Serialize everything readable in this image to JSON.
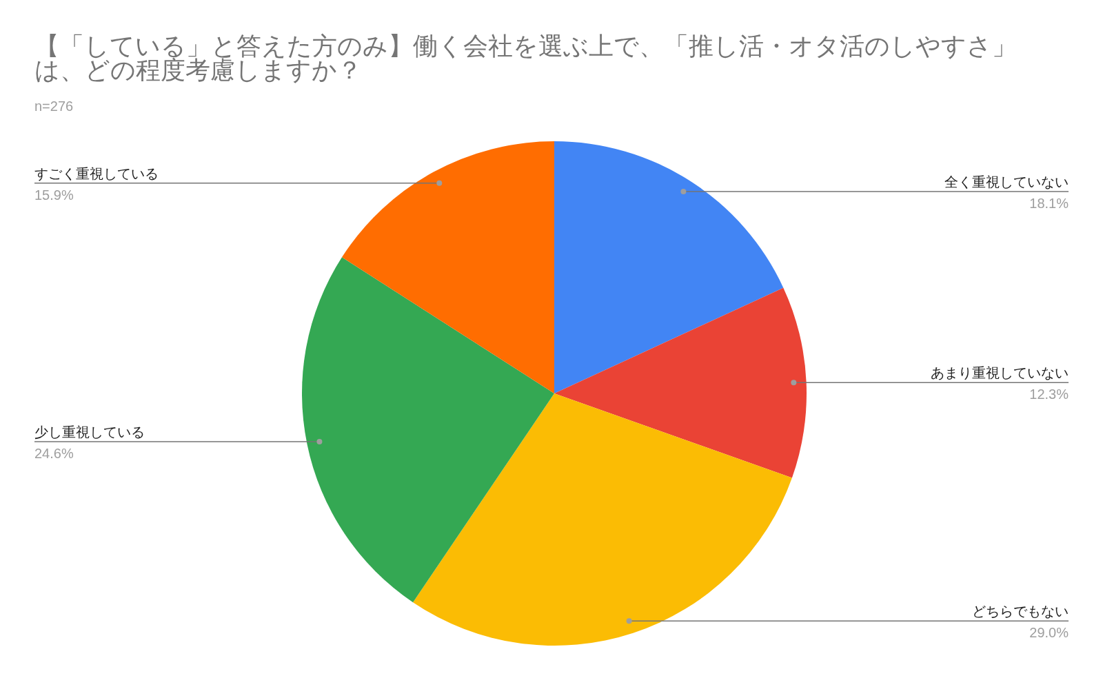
{
  "chart_data": {
    "type": "pie",
    "title": "【「している」と答えた方のみ】働く会社を選ぶ上で、「推し活・オタ活のしやすさ」は、どの程度考慮しますか？",
    "subtitle": "n=276",
    "categories": [
      "全く重視していない",
      "あまり重視していない",
      "どちらでもない",
      "少し重視している",
      "すごく重視している"
    ],
    "values": [
      18.1,
      12.3,
      29.0,
      24.6,
      15.9
    ],
    "colors": [
      "#4285f4",
      "#ea4335",
      "#fbbc04",
      "#34a853",
      "#ff6d01"
    ],
    "value_labels": [
      "18.1%",
      "12.3%",
      "29.0%",
      "24.6%",
      "15.9%"
    ]
  }
}
